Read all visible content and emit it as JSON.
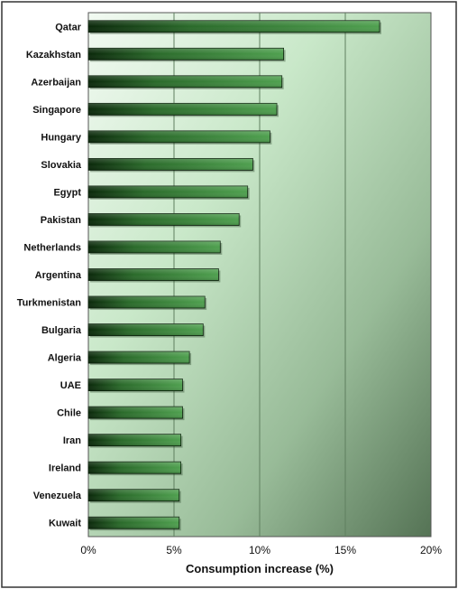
{
  "chart_data": {
    "type": "bar",
    "orientation": "horizontal",
    "categories": [
      "Qatar",
      "Kazakhstan",
      "Azerbaijan",
      "Singapore",
      "Hungary",
      "Slovakia",
      "Egypt",
      "Pakistan",
      "Netherlands",
      "Argentina",
      "Turkmenistan",
      "Bulgaria",
      "Algeria",
      "UAE",
      "Chile",
      "Iran",
      "Ireland",
      "Venezuela",
      "Kuwait"
    ],
    "values": [
      17.0,
      11.4,
      11.3,
      11.0,
      10.6,
      9.6,
      9.3,
      8.8,
      7.7,
      7.6,
      6.8,
      6.7,
      5.9,
      5.5,
      5.5,
      5.4,
      5.4,
      5.3,
      5.3
    ],
    "xlabel": "Consumption increase (%)",
    "ylabel": "",
    "xlim": [
      0,
      20
    ],
    "xticks": [
      "0%",
      "5%",
      "10%",
      "15%",
      "20%"
    ],
    "xtick_values": [
      0,
      5,
      10,
      15,
      20
    ],
    "grid": "vertical",
    "legend": "none",
    "colors": {
      "bar_dark": "#0d2e0d",
      "bar_light": "#4a9a4a",
      "plot_bg_light": "#eef8ee",
      "plot_bg_dark": "#5c7a5c",
      "grid": "#5f7f5f"
    }
  }
}
